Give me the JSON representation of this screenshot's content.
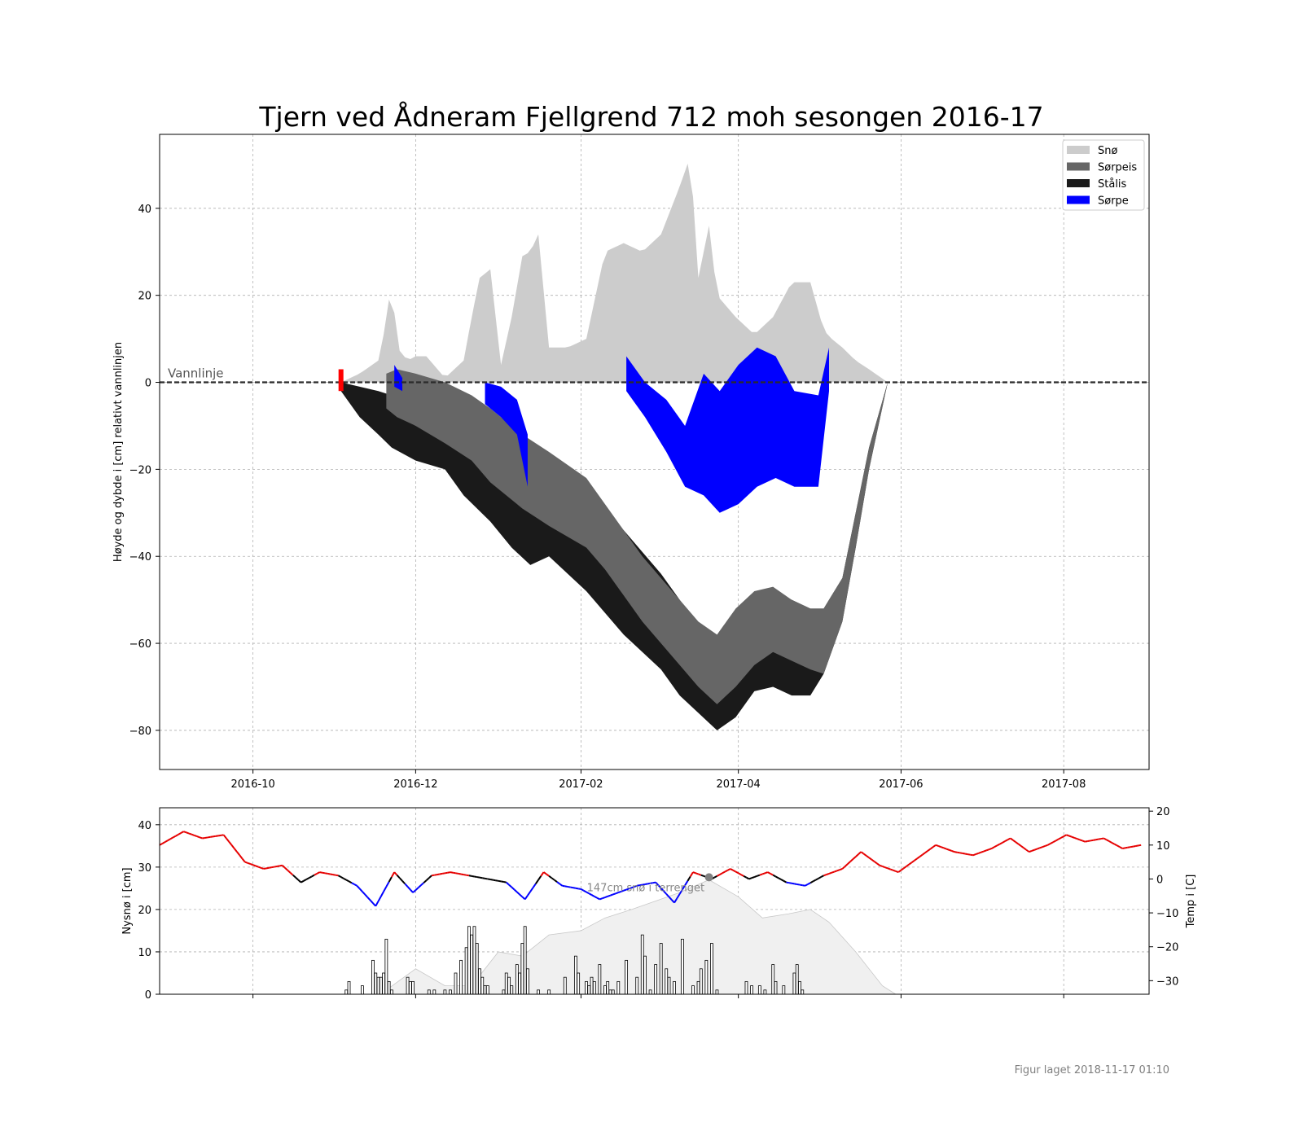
{
  "title": "Tjern ved Ådneram Fjellgrend 712 moh sesongen 2016-17",
  "footer": "Figur laget 2018-11-17 01:10",
  "chart_data": [
    {
      "type": "area",
      "title": "Tjern ved Ådneram Fjellgrend 712 moh sesongen 2016-17",
      "ylabel": "Høyde og dybde i [cm] relativt vannlinjen",
      "ylim": [
        -89,
        57
      ],
      "xlim": [
        "2016-08-27",
        "2017-09-02"
      ],
      "x_ticks": [
        "2016-10",
        "2016-12",
        "2017-02",
        "2017-04",
        "2017-06",
        "2017-08"
      ],
      "y_ticks": [
        -80,
        -60,
        -40,
        -20,
        0,
        20,
        40
      ],
      "grid": true,
      "legend_position": "top-right",
      "annotation": "Vannlinje",
      "legend": [
        "Snø",
        "Sørpeis",
        "Stålis",
        "Sørpe"
      ],
      "colors": {
        "sno": "#cccccc",
        "sorpeis": "#666666",
        "stalis": "#1a1a1a",
        "sorpe": "#0000ff",
        "first_ice_marker": "#ff0000"
      },
      "first_ice_marker": {
        "date": "2016-11-03",
        "y_top": 3,
        "y_bottom": -2
      },
      "series": [
        {
          "name": "Snø",
          "x": [
            "2016-11-03",
            "2016-11-10",
            "2016-11-17",
            "2016-11-20",
            "2016-11-22",
            "2016-11-24",
            "2016-11-28",
            "2016-12-01",
            "2016-12-05",
            "2016-12-12",
            "2016-12-19",
            "2016-12-22",
            "2016-12-25",
            "2016-12-29",
            "2017-01-02",
            "2017-01-06",
            "2017-01-10",
            "2017-01-13",
            "2017-01-16",
            "2017-01-20",
            "2017-01-27",
            "2017-02-03",
            "2017-02-10",
            "2017-02-17",
            "2017-02-24",
            "2017-03-03",
            "2017-03-10",
            "2017-03-14",
            "2017-03-17",
            "2017-03-21",
            "2017-03-24",
            "2017-03-31",
            "2017-04-07",
            "2017-04-14",
            "2017-04-21",
            "2017-04-28",
            "2017-05-03",
            "2017-05-06",
            "2017-05-10",
            "2017-05-15",
            "2017-05-20",
            "2017-05-27"
          ],
          "y": [
            0,
            2,
            5,
            14,
            24,
            8,
            5,
            6,
            6,
            1,
            5,
            15,
            24,
            26,
            4,
            15,
            29,
            30,
            34,
            8,
            8,
            10,
            30,
            32,
            30,
            34,
            45,
            52,
            24,
            36,
            20,
            15,
            11,
            15,
            23,
            23,
            12,
            10,
            8,
            5,
            3,
            0
          ]
        },
        {
          "name": "Sørpeis",
          "x": [
            "2016-11-20",
            "2016-11-24",
            "2016-12-01",
            "2016-12-12",
            "2016-12-22",
            "2016-12-29",
            "2017-01-10",
            "2017-01-20",
            "2017-02-03",
            "2017-02-10",
            "2017-02-24",
            "2017-03-10",
            "2017-03-17",
            "2017-03-24",
            "2017-03-31",
            "2017-04-07",
            "2017-04-14",
            "2017-04-21",
            "2017-04-28",
            "2017-05-03",
            "2017-05-10",
            "2017-05-15",
            "2017-05-20",
            "2017-05-27"
          ],
          "y_top": [
            2,
            3,
            2,
            0,
            -3,
            -6,
            -12,
            -16,
            -22,
            -28,
            -40,
            -50,
            -55,
            -58,
            -52,
            -48,
            -47,
            -50,
            -52,
            -52,
            -45,
            -30,
            -15,
            0
          ],
          "y_bottom": [
            -6,
            -8,
            -10,
            -14,
            -18,
            -23,
            -29,
            -33,
            -38,
            -43,
            -55,
            -65,
            -70,
            -74,
            -70,
            -65,
            -62,
            -64,
            -66,
            -67,
            -55,
            -38,
            -20,
            0
          ]
        },
        {
          "name": "Stålis",
          "x": [
            "2016-11-03",
            "2016-11-10",
            "2016-11-17",
            "2016-11-22",
            "2016-12-01",
            "2016-12-12",
            "2016-12-19",
            "2016-12-29",
            "2017-01-06",
            "2017-01-13",
            "2017-01-20",
            "2017-02-03",
            "2017-02-17",
            "2017-03-03",
            "2017-03-10",
            "2017-03-17",
            "2017-03-24",
            "2017-03-31",
            "2017-04-07",
            "2017-04-14",
            "2017-04-21",
            "2017-04-28",
            "2017-05-03",
            "2017-05-10",
            "2017-05-15",
            "2017-05-20",
            "2017-05-27"
          ],
          "y_top": [
            0,
            -1,
            -2,
            -3,
            -3,
            -4,
            -6,
            -8,
            -12,
            -16,
            -20,
            -26,
            -34,
            -44,
            -50,
            -56,
            -60,
            -56,
            -52,
            -48,
            -50,
            -52,
            -52,
            -45,
            -30,
            -15,
            0
          ],
          "y_bottom": [
            -2,
            -8,
            -12,
            -15,
            -18,
            -20,
            -26,
            -32,
            -38,
            -42,
            -40,
            -48,
            -58,
            -66,
            -72,
            -76,
            -80,
            -77,
            -71,
            -70,
            -72,
            -72,
            -67,
            -55,
            -38,
            -20,
            0
          ]
        },
        {
          "name": "Sørpe",
          "segments": [
            {
              "x": [
                "2016-11-23",
                "2016-11-26"
              ],
              "y_top": [
                4,
                1
              ],
              "y_bottom": [
                -1,
                -2
              ]
            },
            {
              "x": [
                "2016-12-27",
                "2017-01-02",
                "2017-01-08",
                "2017-01-12"
              ],
              "y_top": [
                0,
                -1,
                -4,
                -12
              ],
              "y_bottom": [
                -5,
                -8,
                -12,
                -24
              ]
            },
            {
              "x": [
                "2017-02-18",
                "2017-02-25",
                "2017-03-05",
                "2017-03-12",
                "2017-03-19",
                "2017-03-25",
                "2017-04-01",
                "2017-04-08",
                "2017-04-15",
                "2017-04-22",
                "2017-05-01",
                "2017-05-05"
              ],
              "y_top": [
                6,
                0,
                -4,
                -10,
                2,
                -2,
                4,
                8,
                6,
                -2,
                -3,
                8
              ],
              "y_bottom": [
                -2,
                -8,
                -16,
                -24,
                -26,
                -30,
                -28,
                -24,
                -22,
                -24,
                -24,
                -2
              ]
            }
          ]
        }
      ]
    },
    {
      "type": "bar",
      "ylabel": "Nysnø i [cm]",
      "y2label": "Temp i [C]",
      "ylim": [
        0,
        44
      ],
      "y2lim": [
        -34,
        21
      ],
      "y_ticks": [
        0,
        10,
        20,
        30,
        40
      ],
      "y2_ticks": [
        -30,
        -20,
        -10,
        0,
        10,
        20
      ],
      "grid": true,
      "annotation": "147cm snø i terrenget",
      "annotation_point": {
        "date": "2017-03-21",
        "temp": 0.5
      },
      "colors": {
        "temp_above": "#e60000",
        "temp_mid": "#000000",
        "temp_below": "#0000ff",
        "snow_depth": "#f0f0f0",
        "new_snow_bars": "#ffffff"
      },
      "series": [
        {
          "name": "Nysnø",
          "x": [
            "2016-11-05",
            "2016-11-06",
            "2016-11-11",
            "2016-11-15",
            "2016-11-16",
            "2016-11-17",
            "2016-11-18",
            "2016-11-19",
            "2016-11-20",
            "2016-11-21",
            "2016-11-22",
            "2016-11-28",
            "2016-11-29",
            "2016-11-30",
            "2016-12-06",
            "2016-12-08",
            "2016-12-12",
            "2016-12-14",
            "2016-12-16",
            "2016-12-18",
            "2016-12-20",
            "2016-12-21",
            "2016-12-22",
            "2016-12-23",
            "2016-12-24",
            "2016-12-25",
            "2016-12-26",
            "2016-12-27",
            "2016-12-28",
            "2017-01-03",
            "2017-01-04",
            "2017-01-05",
            "2017-01-06",
            "2017-01-08",
            "2017-01-09",
            "2017-01-10",
            "2017-01-11",
            "2017-01-12",
            "2017-01-16",
            "2017-01-20",
            "2017-01-26",
            "2017-01-30",
            "2017-01-31",
            "2017-02-03",
            "2017-02-04",
            "2017-02-05",
            "2017-02-06",
            "2017-02-08",
            "2017-02-10",
            "2017-02-11",
            "2017-02-12",
            "2017-02-13",
            "2017-02-15",
            "2017-02-18",
            "2017-02-22",
            "2017-02-24",
            "2017-02-25",
            "2017-02-27",
            "2017-03-01",
            "2017-03-03",
            "2017-03-05",
            "2017-03-06",
            "2017-03-08",
            "2017-03-11",
            "2017-03-15",
            "2017-03-17",
            "2017-03-18",
            "2017-03-20",
            "2017-03-22",
            "2017-03-24",
            "2017-04-04",
            "2017-04-06",
            "2017-04-09",
            "2017-04-11",
            "2017-04-14",
            "2017-04-15",
            "2017-04-18",
            "2017-04-22",
            "2017-04-23",
            "2017-04-24",
            "2017-04-25"
          ],
          "values": [
            1,
            3,
            2,
            8,
            5,
            4,
            4,
            5,
            13,
            3,
            1,
            4,
            3,
            3,
            1,
            1,
            1,
            1,
            5,
            8,
            11,
            16,
            14,
            16,
            12,
            6,
            4,
            2,
            2,
            1,
            5,
            4,
            2,
            7,
            5,
            12,
            16,
            6,
            1,
            1,
            4,
            9,
            5,
            3,
            2,
            4,
            3,
            7,
            2,
            3,
            1,
            1,
            3,
            8,
            4,
            14,
            9,
            1,
            7,
            12,
            6,
            4,
            3,
            13,
            2,
            3,
            6,
            8,
            12,
            1,
            3,
            2,
            2,
            1,
            7,
            3,
            2,
            5,
            7,
            3,
            1
          ]
        },
        {
          "name": "Snødybde",
          "x": [
            "2016-11-20",
            "2016-12-01",
            "2016-12-12",
            "2016-12-22",
            "2017-01-01",
            "2017-01-10",
            "2017-01-20",
            "2017-02-01",
            "2017-02-10",
            "2017-02-20",
            "2017-03-01",
            "2017-03-10",
            "2017-03-21",
            "2017-04-01",
            "2017-04-10",
            "2017-04-20",
            "2017-04-28",
            "2017-05-05",
            "2017-05-15",
            "2017-05-25",
            "2017-05-30"
          ],
          "values": [
            1,
            6,
            2,
            2,
            10,
            9,
            14,
            15,
            18,
            20,
            22,
            24,
            27,
            23,
            18,
            19,
            20,
            17,
            10,
            2,
            0
          ]
        },
        {
          "name": "Temp",
          "x": [
            "2016-08-27",
            "2016-09-05",
            "2016-09-12",
            "2016-09-20",
            "2016-09-28",
            "2016-10-05",
            "2016-10-12",
            "2016-10-19",
            "2016-10-26",
            "2016-11-02",
            "2016-11-09",
            "2016-11-16",
            "2016-11-23",
            "2016-11-30",
            "2016-12-07",
            "2016-12-14",
            "2016-12-21",
            "2016-12-28",
            "2017-01-04",
            "2017-01-11",
            "2017-01-18",
            "2017-01-25",
            "2017-02-01",
            "2017-02-08",
            "2017-02-15",
            "2017-02-22",
            "2017-03-01",
            "2017-03-08",
            "2017-03-15",
            "2017-03-22",
            "2017-03-29",
            "2017-04-05",
            "2017-04-12",
            "2017-04-19",
            "2017-04-26",
            "2017-05-03",
            "2017-05-10",
            "2017-05-17",
            "2017-05-24",
            "2017-05-31",
            "2017-06-07",
            "2017-06-14",
            "2017-06-21",
            "2017-06-28",
            "2017-07-05",
            "2017-07-12",
            "2017-07-19",
            "2017-07-26",
            "2017-08-02",
            "2017-08-09",
            "2017-08-16",
            "2017-08-23",
            "2017-08-30"
          ],
          "values": [
            10,
            14,
            12,
            13,
            5,
            3,
            4,
            -1,
            2,
            1,
            -2,
            -8,
            2,
            -4,
            1,
            2,
            1,
            0,
            -1,
            -6,
            2,
            -2,
            -3,
            -6,
            -4,
            -2,
            -1,
            -7,
            2,
            0,
            3,
            0,
            2,
            -1,
            -2,
            1,
            3,
            8,
            4,
            2,
            6,
            10,
            8,
            7,
            9,
            12,
            8,
            10,
            13,
            11,
            12,
            9,
            10
          ]
        }
      ]
    }
  ]
}
